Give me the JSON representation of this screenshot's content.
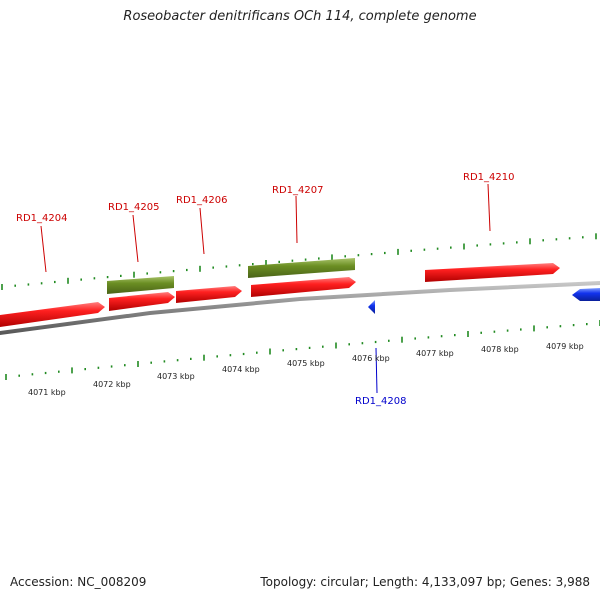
{
  "title": "Roseobacter denitrificans OCh 114, complete genome",
  "footer": {
    "accession": "Accession: NC_008209",
    "summary": "Topology: circular; Length: 4,133,097 bp; Genes: 3,988"
  },
  "colors": {
    "forward_gene": "#ee1111",
    "reverse_gene": "#1133ee",
    "feature": "#6b8e23",
    "backbone": "#888888",
    "ticks": "#228b22",
    "label_forward": "#cc0000",
    "label_reverse": "#0000cc"
  },
  "scale": {
    "labels": [
      "4071 kbp",
      "4072 kbp",
      "4073 kbp",
      "4074 kbp",
      "4075 kbp",
      "4076 kbp",
      "4077 kbp",
      "4078 kbp",
      "4079 kbp"
    ]
  },
  "genes": [
    {
      "label": "",
      "strand": "forward"
    },
    {
      "label": "RD1_4204",
      "strand": "forward"
    },
    {
      "label": "RD1_4205",
      "strand": "forward"
    },
    {
      "label": "RD1_4206",
      "strand": "forward"
    },
    {
      "label": "RD1_4207",
      "strand": "forward"
    },
    {
      "label": "RD1_4208",
      "strand": "reverse"
    },
    {
      "label": "RD1_4210",
      "strand": "forward"
    },
    {
      "label": "",
      "strand": "reverse"
    }
  ],
  "features": [
    {
      "label": ""
    },
    {
      "label": ""
    }
  ]
}
